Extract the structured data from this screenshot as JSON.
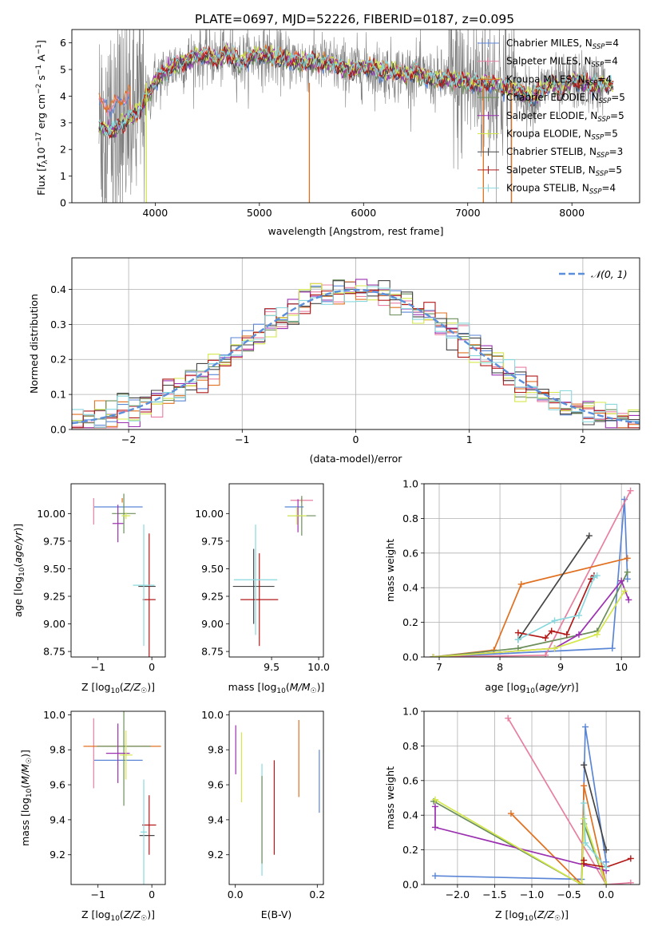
{
  "figure": {
    "title": "PLATE=0697, MJD=52226, FIBERID=0187, z=0.095"
  },
  "colors": {
    "chabrier_miles": "#5b86d6",
    "salpeter_miles": "#e87fa0",
    "kroupa_miles": "#e07020",
    "chabrier_elodie": "#6b8e5a",
    "salpeter_elodie": "#9b30b0",
    "kroupa_elodie": "#d4e84a",
    "chabrier_stelib": "#454545",
    "salpeter_stelib": "#b21818",
    "kroupa_stelib": "#88d8de",
    "data": "#808080",
    "grid": "#b0b0b0"
  },
  "chart_data": [
    {
      "id": "spectrum",
      "type": "line",
      "xlabel": "wavelength [Angstrom, rest frame]",
      "ylabel": "Flux [f_λ 10^-17 erg cm^-2 s^-1 A^-1]",
      "xlim": [
        3200,
        8650
      ],
      "ylim": [
        0,
        6.5
      ],
      "xticks": [
        4000,
        5000,
        6000,
        7000,
        8000
      ],
      "yticks": [
        0,
        1,
        2,
        3,
        4,
        5,
        6
      ],
      "grid": false,
      "legend_position": "upper-right",
      "legend": [
        {
          "name": "Chabrier MILES, N",
          "sub": "SSP",
          "suffix": "=4",
          "color": "#5b86d6"
        },
        {
          "name": "Salpeter MILES, N",
          "sub": "SSP",
          "suffix": "=4",
          "color": "#e87fa0"
        },
        {
          "name": "Kroupa MILES, N",
          "sub": "SSP",
          "suffix": "=4",
          "color": "#e07020"
        },
        {
          "name": "Chabrier ELODIE, N",
          "sub": "SSP",
          "suffix": "=5",
          "color": "#6b8e5a"
        },
        {
          "name": "Salpeter ELODIE, N",
          "sub": "SSP",
          "suffix": "=5",
          "color": "#9b30b0"
        },
        {
          "name": "Kroupa ELODIE, N",
          "sub": "SSP",
          "suffix": "=5",
          "color": "#d4e84a"
        },
        {
          "name": "Chabrier STELIB, N",
          "sub": "SSP",
          "suffix": "=3",
          "color": "#454545"
        },
        {
          "name": "Salpeter STELIB, N",
          "sub": "SSP",
          "suffix": "=5",
          "color": "#b21818"
        },
        {
          "name": "Kroupa STELIB, N",
          "sub": "SSP",
          "suffix": "=4",
          "color": "#88d8de"
        }
      ],
      "continuum": {
        "x": [
          3460,
          3500,
          3560,
          3600,
          3660,
          3700,
          3760,
          3800,
          3860,
          3900,
          3960,
          4000,
          4100,
          4200,
          4300,
          4400,
          4500,
          4600,
          4700,
          4800,
          4900,
          5000,
          5100,
          5200,
          5300,
          5400,
          5500,
          5600,
          5700,
          5800,
          5900,
          6000,
          6100,
          6200,
          6300,
          6400,
          6500,
          6600,
          6700,
          6800,
          6900,
          7000,
          7100,
          7200,
          7300,
          7400,
          7500,
          7600,
          7700,
          7800,
          7900,
          8000,
          8100,
          8200,
          8300,
          8400
        ],
        "y": [
          2.9,
          2.8,
          2.7,
          2.75,
          2.9,
          3.0,
          3.2,
          3.3,
          3.5,
          3.9,
          4.2,
          4.6,
          4.9,
          5.2,
          5.3,
          5.5,
          5.5,
          5.4,
          5.6,
          5.3,
          5.4,
          5.6,
          5.5,
          5.4,
          5.35,
          5.3,
          5.3,
          5.25,
          5.2,
          5.05,
          5.0,
          5.1,
          5.0,
          4.95,
          4.9,
          4.85,
          4.9,
          4.7,
          4.6,
          4.65,
          4.6,
          4.5,
          4.45,
          4.5,
          4.4,
          4.35,
          4.2,
          3.9,
          4.2,
          4.5,
          4.2,
          4.6,
          4.5,
          4.4,
          4.5,
          4.4
        ]
      },
      "data_range": [
        3460,
        8320
      ],
      "model_range": [
        3460,
        8400
      ]
    },
    {
      "id": "residuals",
      "type": "histogram",
      "xlabel": "(data-model)/error",
      "ylabel": "Normed distribution",
      "xlim": [
        -2.5,
        2.5
      ],
      "ylim": [
        0,
        0.49
      ],
      "xticks": [
        -2,
        -1,
        0,
        1,
        2
      ],
      "yticks": [
        0.0,
        0.1,
        0.2,
        0.3,
        0.4
      ],
      "grid": true,
      "legend_position": "upper-right",
      "reference_curve": {
        "name": "𝒩(0, 1)",
        "mean": 0,
        "sigma": 1
      },
      "bin_width": 0.1,
      "bin_start": -2.5
    },
    {
      "id": "age_vs_Z",
      "type": "scatter",
      "xlabel": "Z [log10(Z/Z☉)]",
      "ylabel": "age [log10(age/yr)]",
      "xlim": [
        -1.5,
        0.25
      ],
      "ylim": [
        8.7,
        10.27
      ],
      "xticks": [
        -1,
        0
      ],
      "yticks": [
        8.75,
        9.0,
        9.25,
        9.5,
        9.75,
        10.0
      ],
      "ytick_labels": [
        "8.75",
        "9.00",
        "9.25",
        "9.50",
        "9.75",
        "10.00"
      ],
      "points": [
        {
          "x": -0.62,
          "xerr": 0.45,
          "y": 10.06,
          "yerr": 0.0,
          "color": "#5b86d6"
        },
        {
          "x": -1.08,
          "xerr": 0.0,
          "y": 10.02,
          "yerr": 0.12,
          "color": "#e87fa0"
        },
        {
          "x": -0.55,
          "xerr": 0.0,
          "y": 10.12,
          "yerr": 0.02,
          "color": "#e07020"
        },
        {
          "x": -0.52,
          "xerr": 0.22,
          "y": 10.0,
          "yerr": 0.18,
          "color": "#6b8e5a"
        },
        {
          "x": -0.63,
          "xerr": 0.1,
          "y": 9.91,
          "yerr": 0.17,
          "color": "#9b30b0"
        },
        {
          "x": -0.48,
          "xerr": 0.08,
          "y": 9.98,
          "yerr": 0.03,
          "color": "#d4e84a"
        },
        {
          "x": -0.09,
          "xerr": 0.16,
          "y": 9.34,
          "yerr": 0.0,
          "color": "#454545"
        },
        {
          "x": -0.05,
          "xerr": 0.12,
          "y": 9.22,
          "yerr": 0.6,
          "color": "#b21818"
        },
        {
          "x": -0.15,
          "xerr": 0.2,
          "y": 9.35,
          "yerr": 0.55,
          "color": "#88d8de"
        }
      ]
    },
    {
      "id": "age_vs_mass",
      "type": "scatter",
      "xlabel": "mass [log10(M/M☉)]",
      "ylabel": "",
      "xlim": [
        9.05,
        10.05
      ],
      "ylim": [
        8.7,
        10.27
      ],
      "xticks": [
        9.5,
        10.0
      ],
      "xtick_labels": [
        "9.5",
        "10.0"
      ],
      "yticks": [
        8.75,
        9.0,
        9.25,
        9.5,
        9.75,
        10.0
      ],
      "ytick_labels": [
        "8.75",
        "9.00",
        "9.25",
        "9.50",
        "9.75",
        "10.00"
      ],
      "points": [
        {
          "x": 9.74,
          "xerr": 0.1,
          "y": 10.06,
          "yerr": 0.0,
          "color": "#5b86d6"
        },
        {
          "x": 9.82,
          "xerr": 0.12,
          "y": 10.12,
          "yerr": 0.0,
          "color": "#e87fa0"
        },
        {
          "x": 9.82,
          "xerr": 0.0,
          "y": 10.12,
          "yerr": 0.02,
          "color": "#e07020"
        },
        {
          "x": 9.82,
          "xerr": 0.15,
          "y": 9.98,
          "yerr": 0.18,
          "color": "#6b8e5a"
        },
        {
          "x": 9.78,
          "xerr": 0.02,
          "y": 9.98,
          "yerr": 0.15,
          "color": "#9b30b0"
        },
        {
          "x": 9.77,
          "xerr": 0.1,
          "y": 9.98,
          "yerr": 0.08,
          "color": "#d4e84a"
        },
        {
          "x": 9.31,
          "xerr": 0.22,
          "y": 9.34,
          "yerr": 0.34,
          "color": "#454545"
        },
        {
          "x": 9.37,
          "xerr": 0.2,
          "y": 9.22,
          "yerr": 0.42,
          "color": "#b21818"
        },
        {
          "x": 9.33,
          "xerr": 0.23,
          "y": 9.4,
          "yerr": 0.5,
          "color": "#88d8de"
        }
      ]
    },
    {
      "id": "weight_vs_age",
      "type": "line",
      "xlabel": "age [log10(age/yr)]",
      "ylabel": "mass weight",
      "xlim": [
        6.75,
        10.3
      ],
      "ylim": [
        0,
        1
      ],
      "xticks": [
        7,
        8,
        9,
        10
      ],
      "yticks": [
        0.0,
        0.2,
        0.4,
        0.6,
        0.8,
        1.0
      ],
      "ytick_labels": [
        "0.0",
        "0.2",
        "0.4",
        "0.6",
        "0.8",
        "1.0"
      ],
      "grid": true,
      "series": [
        {
          "color": "#5b86d6",
          "x": [
            6.9,
            9.85,
            10.05,
            10.1
          ],
          "y": [
            0.0,
            0.05,
            0.91,
            0.45
          ]
        },
        {
          "color": "#e87fa0",
          "x": [
            6.9,
            8.75,
            10.15
          ],
          "y": [
            0.0,
            0.01,
            0.96
          ]
        },
        {
          "color": "#e07020",
          "x": [
            6.9,
            7.9,
            8.35,
            10.1
          ],
          "y": [
            0.0,
            0.04,
            0.42,
            0.57
          ]
        },
        {
          "color": "#6b8e5a",
          "x": [
            6.9,
            8.3,
            9.6,
            10.1
          ],
          "y": [
            0.0,
            0.05,
            0.15,
            0.49
          ]
        },
        {
          "color": "#9b30b0",
          "x": [
            6.9,
            8.9,
            9.3,
            10.0,
            10.12
          ],
          "y": [
            0.0,
            0.05,
            0.13,
            0.44,
            0.33
          ]
        },
        {
          "color": "#d4e84a",
          "x": [
            6.9,
            8.9,
            9.6,
            10.05
          ],
          "y": [
            0.0,
            0.05,
            0.13,
            0.38
          ]
        },
        {
          "color": "#454545",
          "x": [
            8.3,
            9.47
          ],
          "y": [
            0.1,
            0.7
          ]
        },
        {
          "color": "#b21818",
          "x": [
            8.3,
            8.75,
            8.85,
            9.1,
            9.5,
            9.55
          ],
          "y": [
            0.14,
            0.11,
            0.15,
            0.13,
            0.45,
            0.47
          ]
        },
        {
          "color": "#88d8de",
          "x": [
            8.3,
            8.9,
            9.3,
            9.55,
            9.6
          ],
          "y": [
            0.1,
            0.21,
            0.24,
            0.46,
            0.47
          ]
        }
      ]
    },
    {
      "id": "mass_vs_Z",
      "type": "scatter",
      "xlabel": "Z [log10(Z/Z☉)]",
      "ylabel": "mass [log10(M/M☉)]",
      "xlim": [
        -1.5,
        0.25
      ],
      "ylim": [
        9.03,
        10.02
      ],
      "xticks": [
        -1,
        0
      ],
      "yticks": [
        9.2,
        9.4,
        9.6,
        9.8,
        10.0
      ],
      "ytick_labels": [
        "9.2",
        "9.4",
        "9.6",
        "9.8",
        "10.0"
      ],
      "points": [
        {
          "x": -0.62,
          "xerr": 0.45,
          "y": 9.74,
          "yerr": 0.0,
          "color": "#5b86d6"
        },
        {
          "x": -1.08,
          "xerr": 0.0,
          "y": 9.78,
          "yerr": 0.2,
          "color": "#e87fa0"
        },
        {
          "x": -0.55,
          "xerr": 0.72,
          "y": 9.82,
          "yerr": 0.0,
          "color": "#e07020"
        },
        {
          "x": -0.52,
          "xerr": 0.5,
          "y": 9.82,
          "yerr": 0.34,
          "color": "#6b8e5a"
        },
        {
          "x": -0.63,
          "xerr": 0.22,
          "y": 9.78,
          "yerr": 0.17,
          "color": "#9b30b0"
        },
        {
          "x": -0.48,
          "xerr": 0.12,
          "y": 9.77,
          "yerr": 0.14,
          "color": "#d4e84a"
        },
        {
          "x": -0.09,
          "xerr": 0.14,
          "y": 9.31,
          "yerr": 0.0,
          "color": "#454545"
        },
        {
          "x": -0.05,
          "xerr": 0.13,
          "y": 9.37,
          "yerr": 0.17,
          "color": "#b21818"
        },
        {
          "x": -0.15,
          "xerr": 0.06,
          "y": 9.33,
          "yerr": 0.3,
          "color": "#88d8de"
        }
      ]
    },
    {
      "id": "mass_vs_ebv",
      "type": "scatter",
      "xlabel": "E(B-V)",
      "ylabel": "",
      "xlim": [
        -0.015,
        0.215
      ],
      "ylim": [
        9.03,
        10.02
      ],
      "xticks": [
        0.0,
        0.2
      ],
      "xtick_labels": [
        "0.0",
        "0.2"
      ],
      "yticks": [
        9.2,
        9.4,
        9.6,
        9.8,
        10.0
      ],
      "ytick_labels": [
        "9.2",
        "9.4",
        "9.6",
        "9.8",
        "10.0"
      ],
      "points": [
        {
          "x": 0.205,
          "xerr": 0.0,
          "y": 9.62,
          "yerr": 0.18,
          "color": "#5b86d6"
        },
        {
          "x": 0.001,
          "xerr": 0.0,
          "y": 9.8,
          "yerr": 0.14,
          "color": "#9b30b0"
        },
        {
          "x": 0.155,
          "xerr": 0.0,
          "y": 9.75,
          "yerr": 0.22,
          "color": "#e07020"
        },
        {
          "x": 0.015,
          "xerr": 0.0,
          "y": 9.7,
          "yerr": 0.2,
          "color": "#d4e84a"
        },
        {
          "x": 0.065,
          "xerr": 0.0,
          "y": 9.4,
          "yerr": 0.32,
          "color": "#88d8de"
        },
        {
          "x": 0.065,
          "xerr": 0.0,
          "y": 9.4,
          "yerr": 0.25,
          "color": "#6b8e5a"
        },
        {
          "x": 0.095,
          "xerr": 0.0,
          "y": 9.47,
          "yerr": 0.27,
          "color": "#b21818"
        }
      ]
    },
    {
      "id": "weight_vs_Z",
      "type": "line",
      "xlabel": "Z [log10(Z/Z☉)]",
      "ylabel": "mass weight",
      "xlim": [
        -2.45,
        0.45
      ],
      "ylim": [
        0,
        1
      ],
      "xticks": [
        -2.0,
        -1.5,
        -1.0,
        -0.5,
        0.0
      ],
      "xtick_labels": [
        "−2.0",
        "−1.5",
        "−1.0",
        "−0.5",
        "0.0"
      ],
      "yticks": [
        0.0,
        0.2,
        0.4,
        0.6,
        0.8,
        1.0
      ],
      "ytick_labels": [
        "0.0",
        "0.2",
        "0.4",
        "0.6",
        "0.8",
        "1.0"
      ],
      "grid": true,
      "series": [
        {
          "color": "#5b86d6",
          "x": [
            -2.3,
            -0.33,
            -0.28,
            0.0
          ],
          "y": [
            0.05,
            0.03,
            0.91,
            0.13
          ]
        },
        {
          "color": "#e87fa0",
          "x": [
            -1.32,
            0.0,
            0.33
          ],
          "y": [
            0.96,
            0.0,
            0.01
          ]
        },
        {
          "color": "#e07020",
          "x": [
            -1.28,
            -0.33,
            -0.3,
            0.0
          ],
          "y": [
            0.41,
            0.0,
            0.57,
            0.0
          ]
        },
        {
          "color": "#6b8e5a",
          "x": [
            -2.32,
            -0.33,
            -0.3,
            0.0
          ],
          "y": [
            0.48,
            0.0,
            0.35,
            0.0
          ]
        },
        {
          "color": "#9b30b0",
          "x": [
            -2.3,
            -2.3,
            0.0
          ],
          "y": [
            0.45,
            0.33,
            0.08
          ]
        },
        {
          "color": "#d4e84a",
          "x": [
            -2.3,
            -0.33,
            -0.3,
            0.0
          ],
          "y": [
            0.49,
            0.0,
            0.38,
            0.0
          ]
        },
        {
          "color": "#454545",
          "x": [
            -0.3,
            0.0
          ],
          "y": [
            0.69,
            0.2
          ]
        },
        {
          "color": "#b21818",
          "x": [
            -0.3,
            -0.3,
            0.0,
            0.33
          ],
          "y": [
            0.14,
            0.12,
            0.1,
            0.15
          ]
        },
        {
          "color": "#88d8de",
          "x": [
            -0.3,
            -0.28,
            0.0
          ],
          "y": [
            0.47,
            0.24,
            0.1
          ]
        }
      ]
    }
  ]
}
